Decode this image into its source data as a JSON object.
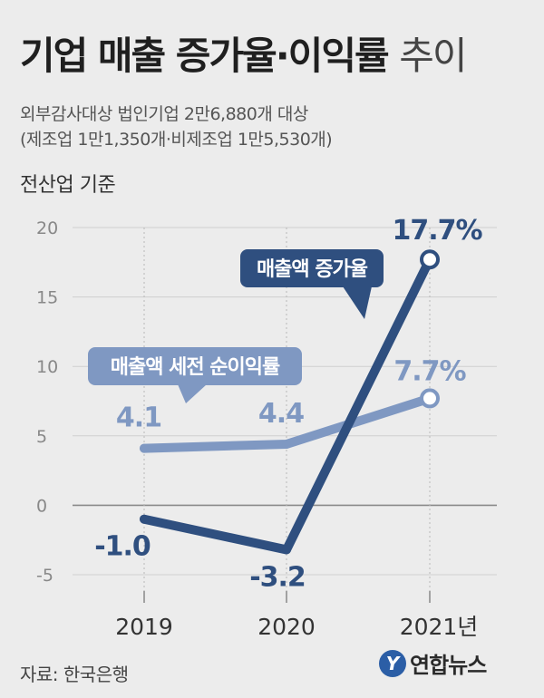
{
  "title_bold": "기업 매출 증가율·이익률",
  "title_light": "추이",
  "subtitle_line1": "외부감사대상 법인기업 2만6,880개 대상",
  "subtitle_line2": "(제조업 1만1,350개·비제조업 1만5,530개)",
  "basis": "전산업 기준",
  "source": "자료: 한국은행",
  "logo_text": "연합뉴스",
  "chart_data": {
    "type": "line",
    "categories": [
      "2019",
      "2020",
      "2021년"
    ],
    "ylim": [
      -5,
      20
    ],
    "yticks": [
      "-5",
      "0",
      "5",
      "10",
      "15",
      "20"
    ],
    "grid": true,
    "series": [
      {
        "name": "매출액 증가율",
        "values": [
          -1.0,
          -3.2,
          17.7
        ],
        "labels": [
          "-1.0",
          "-3.2",
          "17.7%"
        ],
        "color": "#2f4f7f"
      },
      {
        "name": "매출액 세전 순이익률",
        "values": [
          4.1,
          4.4,
          7.7
        ],
        "labels": [
          "4.1",
          "4.4",
          "7.7%"
        ],
        "color": "#7f98c2"
      }
    ]
  }
}
